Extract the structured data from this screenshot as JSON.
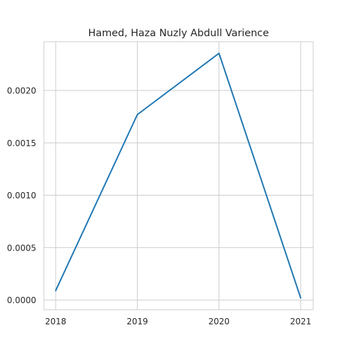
{
  "chart_data": {
    "type": "line",
    "title": "Hamed, Haza Nuzly Abdull Varience",
    "xlabel": "",
    "ylabel": "",
    "x": [
      "2018",
      "2019",
      "2020",
      "2021"
    ],
    "series": [
      {
        "values": [
          9e-05,
          0.00177,
          0.002355,
          2e-05
        ],
        "color": "#1f77b4"
      }
    ],
    "yticks": [
      0.0,
      0.0005,
      0.001,
      0.0015,
      0.002
    ],
    "ytick_labels": [
      "0.0000",
      "0.0005",
      "0.0010",
      "0.0015",
      "0.0020"
    ],
    "ylim": [
      -9.25e-05,
      0.002465
    ],
    "grid": true,
    "legend": "none"
  }
}
